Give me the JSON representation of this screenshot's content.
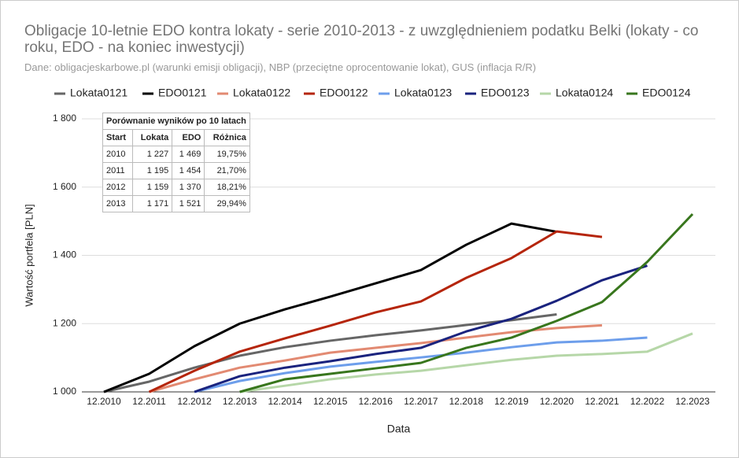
{
  "chart_data": {
    "type": "line",
    "title": "Obligacje 10-letnie EDO kontra lokaty - serie 2010-2013 -  z uwzględnieniem podatku Belki (lokaty - co roku, EDO - na koniec inwestycji)",
    "subtitle": "Dane: obligacjeskarbowe.pl (warunki emisji obligacji), NBP (przeciętne oprocentowanie lokat), GUS (inflacja R/R)",
    "x_label": "Data",
    "y_label": "Wartość portfela [PLN]",
    "categories": [
      "12.2010",
      "12.2011",
      "12.2012",
      "12.2013",
      "12.2014",
      "12.2015",
      "12.2016",
      "12.2017",
      "12.2018",
      "12.2019",
      "12.2020",
      "12.2021",
      "12.2022",
      "12.2023"
    ],
    "ylim": [
      1000,
      1800
    ],
    "yticks": [
      {
        "value": 1000,
        "label": "1 000"
      },
      {
        "value": 1200,
        "label": "1 200"
      },
      {
        "value": 1400,
        "label": "1 400"
      },
      {
        "value": 1600,
        "label": "1 600"
      },
      {
        "value": 1800,
        "label": "1 800"
      }
    ],
    "grid": true,
    "legend": "top",
    "series": [
      {
        "name": "Lokata0121",
        "color": "#666666",
        "values": [
          1000,
          1030,
          1071,
          1106,
          1131,
          1150,
          1166,
          1180,
          1196,
          1210,
          1227,
          null,
          null,
          null
        ]
      },
      {
        "name": "EDO0121",
        "color": "#000000",
        "values": [
          1000,
          1053,
          1134,
          1200,
          1242,
          1279,
          1318,
          1357,
          1431,
          1493,
          1469,
          null,
          null,
          null
        ]
      },
      {
        "name": "Lokata0122",
        "color": "#e28a72",
        "values": [
          null,
          1000,
          1037,
          1071,
          1092,
          1115,
          1129,
          1143,
          1159,
          1175,
          1187,
          1195,
          null,
          null
        ]
      },
      {
        "name": "EDO0122",
        "color": "#b5250b",
        "values": [
          null,
          1000,
          1062,
          1118,
          1157,
          1194,
          1233,
          1265,
          1334,
          1392,
          1470,
          1454,
          null,
          null
        ]
      },
      {
        "name": "Lokata0123",
        "color": "#6d9eeb",
        "values": [
          null,
          null,
          1000,
          1032,
          1055,
          1074,
          1088,
          1101,
          1115,
          1131,
          1145,
          1150,
          1159,
          null
        ]
      },
      {
        "name": "EDO0123",
        "color": "#1a237e",
        "values": [
          null,
          null,
          1000,
          1046,
          1071,
          1090,
          1111,
          1129,
          1177,
          1214,
          1267,
          1327,
          1370,
          null
        ]
      },
      {
        "name": "Lokata0124",
        "color": "#b6d7a8",
        "values": [
          null,
          null,
          null,
          1000,
          1018,
          1037,
          1051,
          1062,
          1078,
          1094,
          1106,
          1111,
          1118,
          1171
        ]
      },
      {
        "name": "EDO0124",
        "color": "#38761d",
        "values": [
          null,
          null,
          null,
          1000,
          1037,
          1053,
          1069,
          1085,
          1129,
          1159,
          1208,
          1263,
          1381,
          1521
        ]
      }
    ],
    "table": {
      "title": "Porównanie wyników po 10 latach",
      "headers": [
        "Start",
        "Lokata",
        "EDO",
        "Różnica"
      ],
      "rows": [
        [
          "2010",
          "1 227",
          "1 469",
          "19,75%"
        ],
        [
          "2011",
          "1 195",
          "1 454",
          "21,70%"
        ],
        [
          "2012",
          "1 159",
          "1 370",
          "18,21%"
        ],
        [
          "2013",
          "1 171",
          "1 521",
          "29,94%"
        ]
      ]
    }
  }
}
